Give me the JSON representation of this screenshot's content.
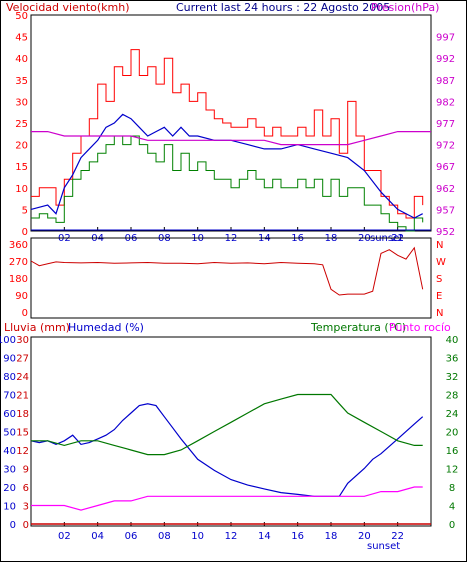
{
  "colors": {
    "background": "#ffffff",
    "frame": "#000000",
    "wind": "#ff0000",
    "gust": "#ff0000",
    "wind_avg": "#008000",
    "direction": "#cc0000",
    "pressure": "#cc00cc",
    "humidity": "#0000cc",
    "temperature": "#007700",
    "dewpoint": "#ff00ff",
    "rain": "#cc0000",
    "axis_text": "#0000cc"
  },
  "chart_data": [
    {
      "type": "line",
      "panel": "wind",
      "title": "Current last 24 hours : 22 Agosto 2005",
      "ylabel": "Velocidad viento(kmh)",
      "y2label": "Presion(hPa)",
      "ylim": [
        0,
        50
      ],
      "y2lim": [
        952,
        1002
      ],
      "yticks": [
        0,
        5,
        10,
        15,
        20,
        25,
        30,
        35,
        40,
        45,
        50
      ],
      "y2ticks": [
        952,
        957,
        962,
        967,
        972,
        977,
        982,
        987,
        992,
        997
      ],
      "xlim": [
        0,
        24
      ],
      "xticks": [
        "02",
        "04",
        "06",
        "08",
        "10",
        "12",
        "14",
        "16",
        "18",
        "20",
        "22"
      ],
      "sunset_label": "sunset",
      "series": [
        {
          "kind": "gust",
          "x": [
            0,
            0.5,
            1,
            1.5,
            2,
            2.5,
            3,
            3.5,
            4,
            4.5,
            5,
            5.5,
            6,
            6.5,
            7,
            7.5,
            8,
            8.5,
            9,
            9.5,
            10,
            10.5,
            11,
            11.5,
            12,
            12.5,
            13,
            13.5,
            14,
            14.5,
            15,
            15.5,
            16,
            16.5,
            17,
            17.5,
            18,
            18.5,
            19,
            19.5,
            20,
            20.5,
            21,
            21.5,
            22,
            22.5,
            23,
            23.5
          ],
          "values": [
            8,
            10,
            10,
            6,
            12,
            18,
            22,
            26,
            34,
            30,
            38,
            36,
            42,
            36,
            38,
            34,
            40,
            32,
            34,
            30,
            32,
            28,
            26,
            25,
            24,
            24,
            26,
            24,
            22,
            24,
            22,
            22,
            24,
            22,
            28,
            22,
            26,
            18,
            30,
            22,
            14,
            14,
            8,
            6,
            4,
            3,
            8,
            6
          ]
        },
        {
          "kind": "wind_avg",
          "x": [
            0,
            0.5,
            1,
            1.5,
            2,
            2.5,
            3,
            3.5,
            4,
            4.5,
            5,
            5.5,
            6,
            6.5,
            7,
            7.5,
            8,
            8.5,
            9,
            9.5,
            10,
            10.5,
            11,
            11.5,
            12,
            12.5,
            13,
            13.5,
            14,
            14.5,
            15,
            15.5,
            16,
            16.5,
            17,
            17.5,
            18,
            18.5,
            19,
            19.5,
            20,
            20.5,
            21,
            21.5,
            22,
            22.5,
            23,
            23.5
          ],
          "values": [
            3,
            4,
            3,
            2,
            8,
            12,
            14,
            16,
            18,
            20,
            22,
            20,
            22,
            20,
            18,
            16,
            20,
            14,
            18,
            14,
            16,
            14,
            12,
            12,
            10,
            12,
            14,
            12,
            10,
            12,
            10,
            10,
            12,
            10,
            12,
            8,
            12,
            8,
            10,
            10,
            6,
            6,
            4,
            2,
            1,
            0,
            3,
            2
          ]
        },
        {
          "kind": "wind_mean",
          "x": [
            0,
            1,
            1.5,
            2,
            2.5,
            3,
            3.5,
            4,
            4.5,
            5,
            5.5,
            6,
            6.5,
            7,
            7.5,
            8,
            8.5,
            9,
            9.5,
            10,
            11,
            12,
            13,
            14,
            15,
            16,
            17,
            18,
            19,
            20,
            21,
            22,
            23,
            23.5
          ],
          "values": [
            5,
            6,
            4,
            10,
            13,
            17,
            19,
            21,
            24,
            25,
            27,
            26,
            24,
            22,
            23,
            24,
            22,
            24,
            22,
            22,
            21,
            21,
            20,
            19,
            19,
            20,
            19,
            18,
            17,
            14,
            9,
            5,
            3,
            4
          ]
        },
        {
          "kind": "pressure",
          "x": [
            0,
            1,
            2,
            3,
            4,
            5,
            6,
            7,
            8,
            9,
            10,
            11,
            12,
            13,
            14,
            15,
            16,
            17,
            18,
            19,
            20,
            21,
            22,
            23,
            24
          ],
          "values": [
            975,
            975,
            974,
            974,
            974,
            974,
            974,
            973,
            973,
            973,
            973,
            973,
            973,
            973,
            973,
            972,
            972,
            972,
            972,
            972,
            973,
            974,
            975,
            975,
            975
          ]
        }
      ]
    },
    {
      "type": "line",
      "panel": "direction",
      "ylim": [
        0,
        360
      ],
      "yticks": [
        0,
        90,
        180,
        270,
        360
      ],
      "y2ticks": [
        "N",
        "W",
        "S",
        "E",
        "N"
      ],
      "xlim": [
        0,
        24
      ],
      "series": [
        {
          "kind": "direction",
          "x": [
            0,
            0.5,
            1,
            1.5,
            2,
            3,
            4,
            5,
            6,
            7,
            8,
            9,
            10,
            11,
            12,
            13,
            14,
            15,
            16,
            17,
            17.5,
            18,
            18.5,
            19,
            20,
            20.5,
            21,
            21.5,
            22,
            22.5,
            23,
            23.5
          ],
          "values": [
            270,
            245,
            255,
            265,
            262,
            260,
            262,
            258,
            260,
            262,
            258,
            258,
            255,
            262,
            258,
            260,
            255,
            262,
            258,
            255,
            250,
            120,
            90,
            95,
            95,
            110,
            310,
            330,
            300,
            280,
            340,
            120
          ]
        }
      ]
    },
    {
      "type": "line",
      "panel": "temperature",
      "ylabel": "Lluvia (mm)",
      "ylabel2": "Humedad (%)",
      "y2label": "Temperatura (°C)",
      "y2label_extra": "Punto rocío",
      "rain_ylim": [
        0,
        30
      ],
      "rain_yticks": [
        0,
        3,
        6,
        9,
        12,
        15,
        18,
        21,
        24,
        27,
        30
      ],
      "hum_ylim": [
        0,
        100
      ],
      "hum_yticks": [
        0,
        10,
        20,
        30,
        40,
        50,
        60,
        70,
        80,
        90,
        100
      ],
      "temp_ylim": [
        0,
        40
      ],
      "temp_yticks": [
        0,
        4,
        8,
        12,
        16,
        20,
        24,
        28,
        32,
        36,
        40
      ],
      "xlim": [
        0,
        24
      ],
      "xticks": [
        "02",
        "04",
        "06",
        "08",
        "10",
        "12",
        "14",
        "16",
        "18",
        "20",
        "22"
      ],
      "sunset_label": "sunset",
      "series": [
        {
          "kind": "humidity",
          "x": [
            0,
            0.5,
            1,
            1.5,
            2,
            2.5,
            3,
            3.5,
            4,
            4.5,
            5,
            5.5,
            6,
            6.5,
            7,
            7.5,
            8,
            8.5,
            9,
            10,
            11,
            12,
            13,
            14,
            15,
            16,
            17,
            18,
            18.5,
            19,
            20,
            20.5,
            21,
            22,
            23,
            23.5
          ],
          "values": [
            45,
            44,
            45,
            43,
            45,
            48,
            43,
            44,
            46,
            48,
            51,
            56,
            60,
            64,
            65,
            64,
            58,
            52,
            46,
            35,
            29,
            24,
            21,
            19,
            17,
            16,
            15,
            15,
            15,
            22,
            30,
            35,
            38,
            46,
            54,
            58
          ]
        },
        {
          "kind": "temperature",
          "x": [
            0,
            1,
            2,
            3,
            4,
            5,
            6,
            7,
            8,
            9,
            10,
            11,
            12,
            13,
            14,
            15,
            16,
            17,
            18,
            18.5,
            19,
            20,
            21,
            22,
            23,
            23.5
          ],
          "values": [
            18,
            18,
            17,
            18,
            18,
            17,
            16,
            15,
            15,
            16,
            18,
            20,
            22,
            24,
            26,
            27,
            28,
            28,
            28,
            26,
            24,
            22,
            20,
            18,
            17,
            17
          ]
        },
        {
          "kind": "dewpoint",
          "x": [
            0,
            1,
            2,
            3,
            4,
            5,
            6,
            7,
            8,
            9,
            10,
            11,
            12,
            13,
            14,
            15,
            16,
            17,
            18,
            19,
            20,
            21,
            22,
            23,
            23.5
          ],
          "values": [
            4,
            4,
            4,
            3,
            4,
            5,
            5,
            6,
            6,
            6,
            6,
            6,
            6,
            6,
            6,
            6,
            6,
            6,
            6,
            6,
            6,
            7,
            7,
            8,
            8
          ]
        },
        {
          "kind": "rain",
          "x": [
            0,
            24
          ],
          "values": [
            0,
            0
          ]
        }
      ]
    }
  ]
}
